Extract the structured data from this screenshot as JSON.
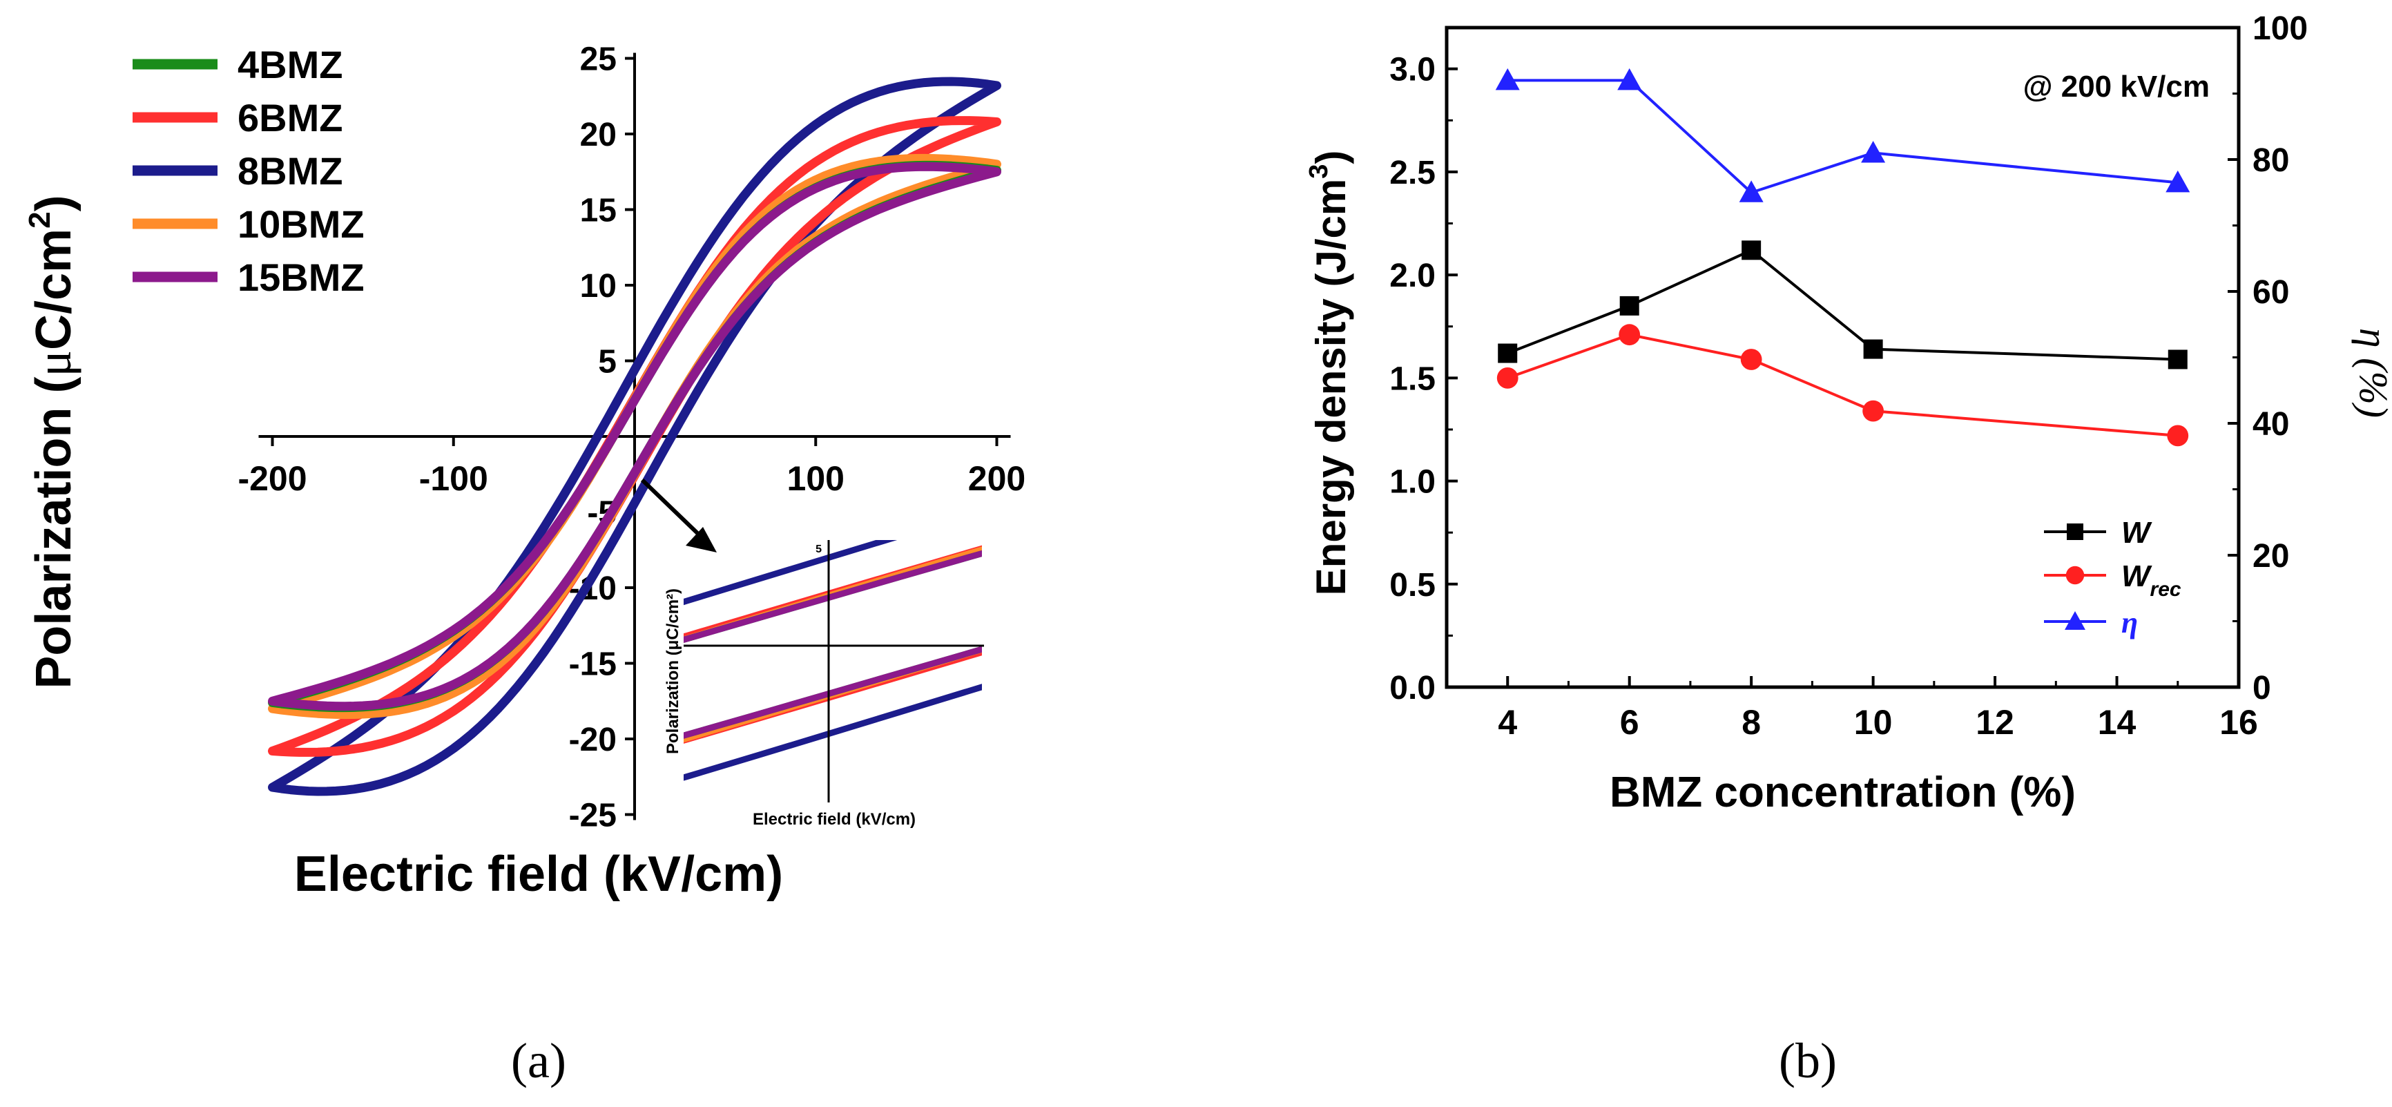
{
  "panel_a_label": "(a)",
  "panel_b_label": "(b)",
  "chart_data": [
    {
      "type": "line",
      "panel": "a",
      "xlabel": "Electric field (kV/cm)",
      "ylabel": "Polarization (μC/cm²)",
      "ylabel_parts": {
        "main": "Polarization (",
        "mu": "μ",
        "unit": "C/cm",
        "sup": "2",
        "close": ")"
      },
      "xlim": [
        -200,
        200
      ],
      "ylim": [
        -25,
        25
      ],
      "xticks": [
        -200,
        -100,
        100,
        200
      ],
      "yticks": [
        -25,
        -20,
        -15,
        -10,
        -5,
        5,
        10,
        15,
        20,
        25
      ],
      "legend_position": "top-left",
      "series": [
        {
          "name": "4BMZ",
          "color": "#1a8c1a",
          "pmax": 17.6,
          "pr": 2.4,
          "ec": 12
        },
        {
          "name": "6BMZ",
          "color": "#ff3030",
          "pmax": 20.8,
          "pr": 2.6,
          "ec": 13
        },
        {
          "name": "8BMZ",
          "color": "#1c1c8c",
          "pmax": 23.2,
          "pr": 4.4,
          "ec": 22
        },
        {
          "name": "10BMZ",
          "color": "#ff8c2a",
          "pmax": 18.0,
          "pr": 2.5,
          "ec": 12
        },
        {
          "name": "15BMZ",
          "color": "#8c1a8c",
          "pmax": 17.5,
          "pr": 2.4,
          "ec": 12
        }
      ],
      "inset": {
        "xlabel": "Electric field (kV/cm)",
        "ylabel": "Polarization (μC/cm²)",
        "ytick_label": "5"
      }
    },
    {
      "type": "line",
      "panel": "b",
      "xlabel": "BMZ concentration (%)",
      "ylabel": "Energy density (J/cm³)",
      "ylabel_parts": {
        "main": "Energy density (J/cm",
        "sup": "3",
        "close": ")"
      },
      "y2label": "η (%)",
      "annotation": "@ 200 kV/cm",
      "xlim": [
        3,
        16
      ],
      "ylim": [
        0,
        3.2
      ],
      "y2lim": [
        0,
        100
      ],
      "xticks": [
        4,
        6,
        8,
        10,
        12,
        14,
        16
      ],
      "yticks": [
        0.0,
        0.5,
        1.0,
        1.5,
        2.0,
        2.5,
        3.0
      ],
      "y2ticks": [
        0,
        20,
        40,
        60,
        80,
        100
      ],
      "x": [
        4,
        6,
        8,
        10,
        15
      ],
      "legend_position": "bottom-right",
      "series": [
        {
          "name": "W",
          "axis": "left",
          "color": "#000000",
          "marker": "square",
          "values": [
            1.62,
            1.85,
            2.12,
            1.64,
            1.59
          ]
        },
        {
          "name": "W",
          "name_sub": "rec",
          "axis": "left",
          "color": "#ff2020",
          "marker": "circle",
          "values": [
            1.5,
            1.71,
            1.59,
            1.34,
            1.22
          ]
        },
        {
          "name": "η",
          "axis": "right",
          "color": "#2222ff",
          "marker": "triangle",
          "values": [
            92,
            92,
            75,
            81,
            76.5
          ]
        }
      ]
    }
  ]
}
